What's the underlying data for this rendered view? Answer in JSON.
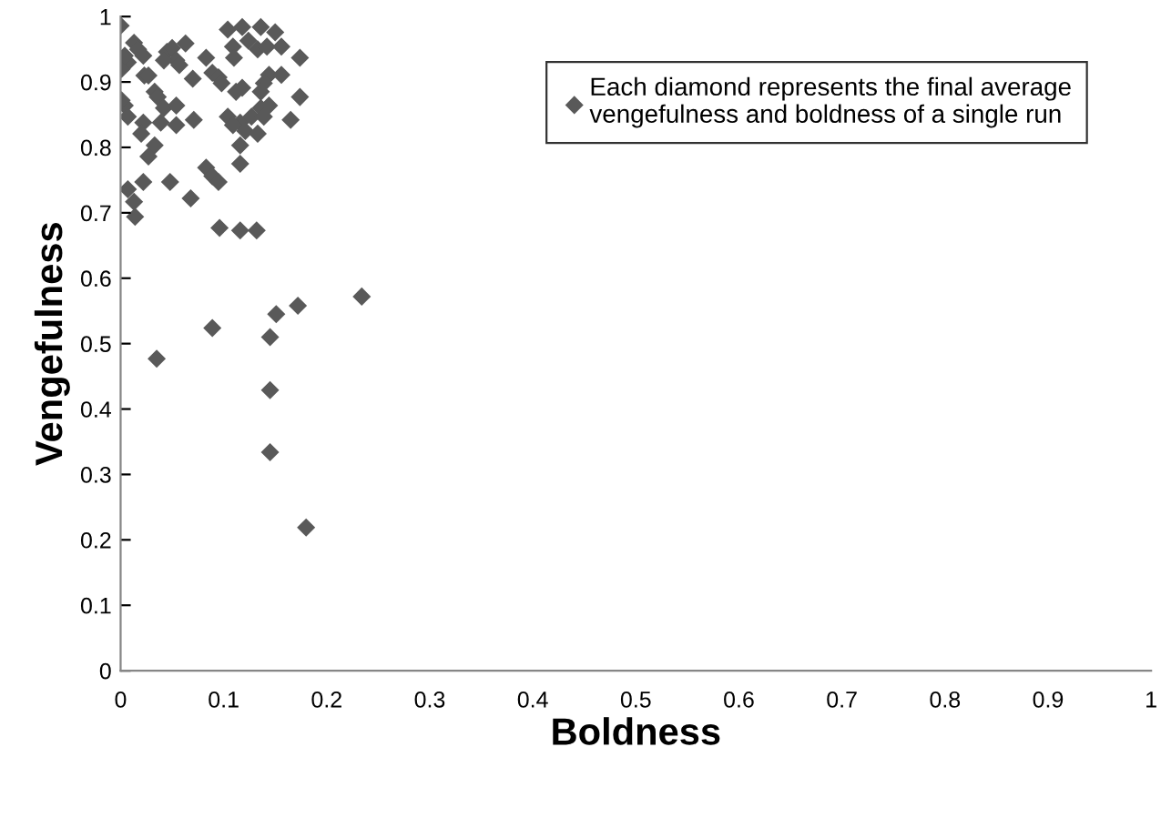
{
  "chart_data": {
    "type": "scatter",
    "xlabel": "Boldness",
    "ylabel": "Vengefulness",
    "marker": "diamond",
    "legend": "top right",
    "grid": false,
    "xlim": [
      0,
      1
    ],
    "ylim": [
      0,
      1
    ],
    "xticks": [
      0,
      0.1,
      0.2,
      0.3,
      0.4,
      0.5,
      0.6,
      0.7,
      0.8,
      0.9,
      1
    ],
    "yticks": [
      0,
      0.1,
      0.2,
      0.3,
      0.4,
      0.5,
      0.6,
      0.7,
      0.8,
      0.9,
      1
    ],
    "series": [
      {
        "name": "Each diamond represents the final average\nvengefulness and boldness of a single run",
        "color": "#595959",
        "x": [
          0,
          0.013,
          0.017,
          0.022,
          0.007,
          0.001,
          0.004,
          0.023,
          0.027,
          0.045,
          0.05,
          0.054,
          0.042,
          0.057,
          0.063,
          0.083,
          0.07,
          0.089,
          0.095,
          0.098,
          0.104,
          0.118,
          0.136,
          0.15,
          0.109,
          0.124,
          0.133,
          0.142,
          0.156,
          0.11,
          0.174,
          0.144,
          0.156,
          0.139,
          0.136,
          0.112,
          0.118,
          0.174,
          0.004,
          0.001,
          0.007,
          0.033,
          0.036,
          0.042,
          0.054,
          0.071,
          0.039,
          0.054,
          0.022,
          0.02,
          0.104,
          0.116,
          0.127,
          0.136,
          0.144,
          0.121,
          0.133,
          0.109,
          0.139,
          0.165,
          0.033,
          0.027,
          0.116,
          0.116,
          0.007,
          0.022,
          0.048,
          0.068,
          0.083,
          0.089,
          0.095,
          0.013,
          0.014,
          0.096,
          0.116,
          0.132,
          0.234,
          0.172,
          0.151,
          0.089,
          0.145,
          0.035,
          0.145,
          0.145,
          0.18
        ],
        "values": [
          0.986,
          0.96,
          0.95,
          0.94,
          0.93,
          0.92,
          0.94,
          0.91,
          0.91,
          0.946,
          0.952,
          0.933,
          0.933,
          0.926,
          0.959,
          0.937,
          0.905,
          0.914,
          0.907,
          0.898,
          0.98,
          0.984,
          0.984,
          0.976,
          0.954,
          0.963,
          0.95,
          0.954,
          0.954,
          0.937,
          0.937,
          0.911,
          0.911,
          0.898,
          0.885,
          0.885,
          0.891,
          0.877,
          0.864,
          0.872,
          0.847,
          0.885,
          0.877,
          0.86,
          0.864,
          0.842,
          0.838,
          0.834,
          0.838,
          0.821,
          0.847,
          0.838,
          0.847,
          0.86,
          0.864,
          0.825,
          0.821,
          0.834,
          0.847,
          0.842,
          0.803,
          0.786,
          0.803,
          0.775,
          0.736,
          0.747,
          0.747,
          0.722,
          0.769,
          0.756,
          0.747,
          0.717,
          0.694,
          0.677,
          0.673,
          0.673,
          0.572,
          0.558,
          0.545,
          0.524,
          0.51,
          0.477,
          0.429,
          0.334,
          0.219
        ]
      }
    ]
  }
}
